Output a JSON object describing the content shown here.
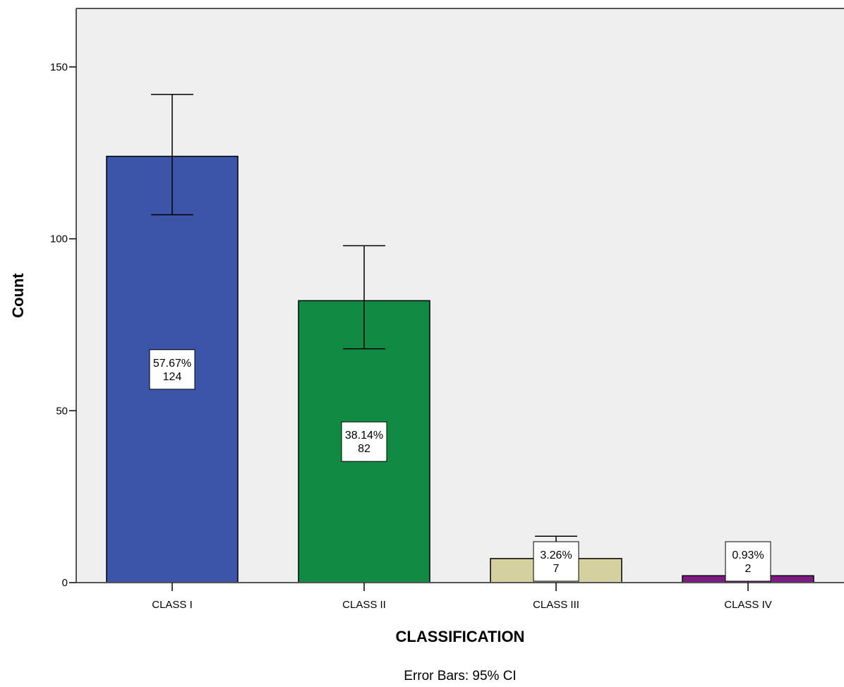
{
  "chart_data": {
    "type": "bar",
    "xlabel": "CLASSIFICATION",
    "ylabel": "Count",
    "footnote": "Error Bars: 95% CI",
    "ylim": [
      0,
      167
    ],
    "yticks": [
      0,
      50,
      100,
      150
    ],
    "grid": false,
    "legend": "none",
    "categories": [
      "CLASS I",
      "CLASS II",
      "CLASS III",
      "CLASS IV"
    ],
    "values": [
      124,
      82,
      7,
      2
    ],
    "percent_labels": [
      "57.67%",
      "38.14%",
      "3.26%",
      "0.93%"
    ],
    "count_labels": [
      "124",
      "82",
      "7",
      "2"
    ],
    "error_bars": [
      {
        "low": 107,
        "high": 142
      },
      {
        "low": 68,
        "high": 98
      },
      {
        "low": 3,
        "high": 13.5
      },
      {
        "low": 0,
        "high": 6
      }
    ],
    "colors": [
      "#3d55a8",
      "#118a44",
      "#d5d0a0",
      "#7e1b83"
    ],
    "plot_background": "#efefef"
  }
}
